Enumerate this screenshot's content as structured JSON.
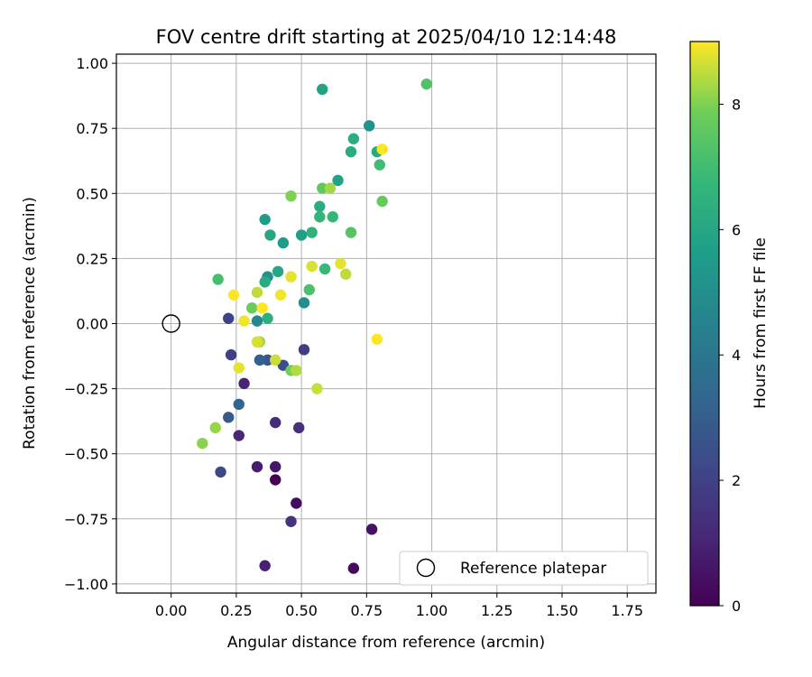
{
  "chart_data": {
    "type": "scatter",
    "title": "FOV centre drift starting at 2025/04/10 12:14:48",
    "xlabel": "Angular distance from reference (arcmin)",
    "ylabel": "Rotation from reference (arcmin)",
    "xlim": [
      -0.21,
      1.86
    ],
    "ylim": [
      -1.035,
      1.035
    ],
    "xticks": [
      0.0,
      0.25,
      0.5,
      0.75,
      1.0,
      1.25,
      1.5,
      1.75
    ],
    "xtick_labels": [
      "0.00",
      "0.25",
      "0.50",
      "0.75",
      "1.00",
      "1.25",
      "1.50",
      "1.75"
    ],
    "yticks": [
      1.0,
      0.75,
      0.5,
      0.25,
      0.0,
      -0.25,
      -0.5,
      -0.75,
      -1.0
    ],
    "ytick_labels": [
      "1.00",
      "0.75",
      "0.50",
      "0.25",
      "0.00",
      "−0.25",
      "−0.50",
      "−0.75",
      "−1.00"
    ],
    "grid": true,
    "colormap": "viridis",
    "colorbar": {
      "label": "Hours from first FF file",
      "range": [
        0,
        9
      ],
      "ticks": [
        0,
        2,
        4,
        6,
        8
      ],
      "tick_labels": [
        "0",
        "2",
        "4",
        "6",
        "8"
      ]
    },
    "legend": {
      "position": "lower-right",
      "entries": [
        "Reference platepar"
      ]
    },
    "reference_point": {
      "x": 0.0,
      "y": 0.0,
      "label": "Reference platepar"
    },
    "points": [
      {
        "x": 0.4,
        "y": -0.6,
        "hours": 0.0
      },
      {
        "x": 0.7,
        "y": -0.94,
        "hours": 0.3
      },
      {
        "x": 0.48,
        "y": -0.69,
        "hours": 0.3
      },
      {
        "x": 0.4,
        "y": -0.55,
        "hours": 0.6
      },
      {
        "x": 0.77,
        "y": -0.79,
        "hours": 0.5
      },
      {
        "x": 0.33,
        "y": -0.55,
        "hours": 0.8
      },
      {
        "x": 0.36,
        "y": -0.93,
        "hours": 0.9
      },
      {
        "x": 0.28,
        "y": -0.23,
        "hours": 1.0
      },
      {
        "x": 0.26,
        "y": -0.43,
        "hours": 1.1
      },
      {
        "x": 0.4,
        "y": -0.38,
        "hours": 1.3
      },
      {
        "x": 0.49,
        "y": -0.4,
        "hours": 1.4
      },
      {
        "x": 0.46,
        "y": -0.76,
        "hours": 1.5
      },
      {
        "x": 0.51,
        "y": -0.1,
        "hours": 1.8
      },
      {
        "x": 0.23,
        "y": -0.12,
        "hours": 1.9
      },
      {
        "x": 0.22,
        "y": 0.02,
        "hours": 2.0
      },
      {
        "x": 0.19,
        "y": -0.57,
        "hours": 2.2
      },
      {
        "x": 0.43,
        "y": -0.16,
        "hours": 2.4
      },
      {
        "x": 0.37,
        "y": -0.14,
        "hours": 2.7
      },
      {
        "x": 0.22,
        "y": -0.36,
        "hours": 2.9
      },
      {
        "x": 0.34,
        "y": -0.14,
        "hours": 3.1
      },
      {
        "x": 0.26,
        "y": -0.31,
        "hours": 3.3
      },
      {
        "x": 0.33,
        "y": 0.01,
        "hours": 4.8
      },
      {
        "x": 0.51,
        "y": 0.08,
        "hours": 5.0
      },
      {
        "x": 0.37,
        "y": 0.18,
        "hours": 5.1
      },
      {
        "x": 0.76,
        "y": 0.76,
        "hours": 5.2
      },
      {
        "x": 0.43,
        "y": 0.31,
        "hours": 5.5
      },
      {
        "x": 0.36,
        "y": 0.4,
        "hours": 5.6
      },
      {
        "x": 0.5,
        "y": 0.34,
        "hours": 5.7
      },
      {
        "x": 0.64,
        "y": 0.55,
        "hours": 5.8
      },
      {
        "x": 0.58,
        "y": 0.9,
        "hours": 5.9
      },
      {
        "x": 0.38,
        "y": 0.34,
        "hours": 6.0
      },
      {
        "x": 0.41,
        "y": 0.2,
        "hours": 6.0
      },
      {
        "x": 0.36,
        "y": 0.16,
        "hours": 6.2
      },
      {
        "x": 0.69,
        "y": 0.66,
        "hours": 6.2
      },
      {
        "x": 0.79,
        "y": 0.66,
        "hours": 6.1
      },
      {
        "x": 0.57,
        "y": 0.45,
        "hours": 6.2
      },
      {
        "x": 0.7,
        "y": 0.71,
        "hours": 6.3
      },
      {
        "x": 0.37,
        "y": 0.02,
        "hours": 6.4
      },
      {
        "x": 0.54,
        "y": 0.35,
        "hours": 6.5
      },
      {
        "x": 0.57,
        "y": 0.41,
        "hours": 6.6
      },
      {
        "x": 0.62,
        "y": 0.41,
        "hours": 6.7
      },
      {
        "x": 0.59,
        "y": 0.21,
        "hours": 6.8
      },
      {
        "x": 0.8,
        "y": 0.61,
        "hours": 7.0
      },
      {
        "x": 0.18,
        "y": 0.17,
        "hours": 7.1
      },
      {
        "x": 0.53,
        "y": 0.13,
        "hours": 7.2
      },
      {
        "x": 0.98,
        "y": 0.92,
        "hours": 7.3
      },
      {
        "x": 0.69,
        "y": 0.35,
        "hours": 7.4
      },
      {
        "x": 0.58,
        "y": 0.52,
        "hours": 7.6
      },
      {
        "x": 0.81,
        "y": 0.47,
        "hours": 7.7
      },
      {
        "x": 0.31,
        "y": 0.06,
        "hours": 7.8
      },
      {
        "x": 0.46,
        "y": -0.18,
        "hours": 7.9
      },
      {
        "x": 0.46,
        "y": 0.49,
        "hours": 8.0
      },
      {
        "x": 0.12,
        "y": -0.46,
        "hours": 8.1
      },
      {
        "x": 0.17,
        "y": -0.4,
        "hours": 8.2
      },
      {
        "x": 0.61,
        "y": 0.52,
        "hours": 8.3
      },
      {
        "x": 0.48,
        "y": -0.18,
        "hours": 8.4
      },
      {
        "x": 0.34,
        "y": -0.07,
        "hours": 8.3
      },
      {
        "x": 0.67,
        "y": 0.19,
        "hours": 8.5
      },
      {
        "x": 0.33,
        "y": 0.12,
        "hours": 8.5
      },
      {
        "x": 0.56,
        "y": -0.25,
        "hours": 8.6
      },
      {
        "x": 0.4,
        "y": -0.14,
        "hours": 8.6
      },
      {
        "x": 0.33,
        "y": -0.07,
        "hours": 8.7
      },
      {
        "x": 0.54,
        "y": 0.22,
        "hours": 8.7
      },
      {
        "x": 0.46,
        "y": 0.18,
        "hours": 8.8
      },
      {
        "x": 0.26,
        "y": -0.17,
        "hours": 8.8
      },
      {
        "x": 0.65,
        "y": 0.23,
        "hours": 8.8
      },
      {
        "x": 0.42,
        "y": 0.11,
        "hours": 8.9
      },
      {
        "x": 0.28,
        "y": 0.01,
        "hours": 8.9
      },
      {
        "x": 0.24,
        "y": 0.11,
        "hours": 9.0
      },
      {
        "x": 0.35,
        "y": 0.06,
        "hours": 9.0
      },
      {
        "x": 0.79,
        "y": -0.06,
        "hours": 9.0
      },
      {
        "x": 0.81,
        "y": 0.67,
        "hours": 9.0
      }
    ]
  }
}
